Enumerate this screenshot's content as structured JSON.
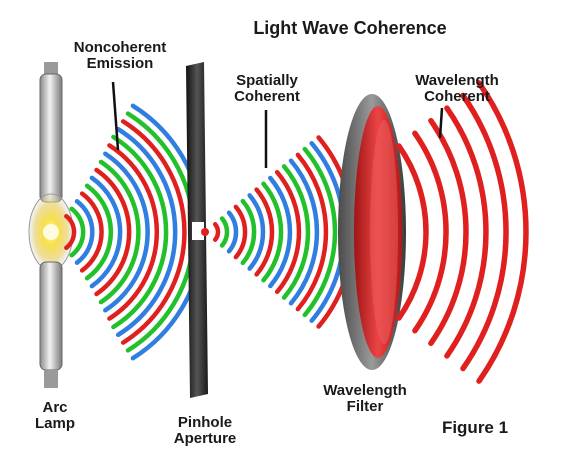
{
  "title": "Light Wave Coherence",
  "labels": {
    "noncoherent": [
      "Noncoherent",
      "Emission"
    ],
    "spatially": [
      "Spatially",
      "Coherent"
    ],
    "wavelength_coherent": [
      "Wavelength",
      "Coherent"
    ],
    "arc_lamp": [
      "Arc",
      "Lamp"
    ],
    "pinhole": [
      "Pinhole",
      "Aperture"
    ],
    "filter": [
      "Wavelength",
      "Filter"
    ]
  },
  "figure_label": "Figure 1",
  "colors": {
    "red": "#e0201e",
    "green": "#22c02a",
    "blue": "#2f7ee0",
    "aperture": "#2a2a2a",
    "filter_red": "#d81f1f"
  }
}
